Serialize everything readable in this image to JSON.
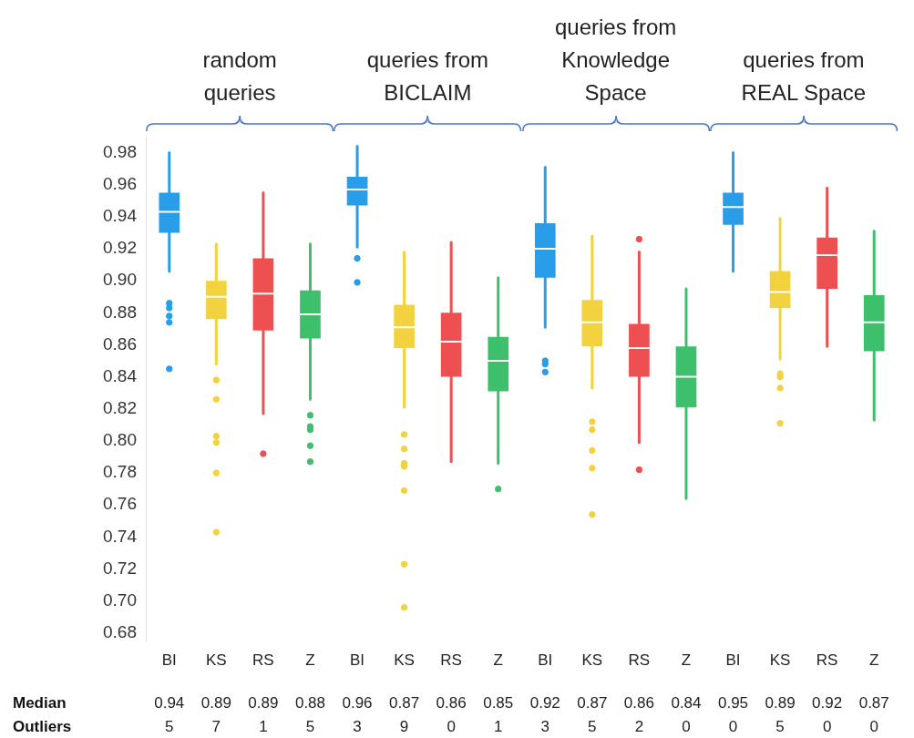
{
  "chart_data": {
    "type": "box",
    "categories": [
      "BI",
      "KS",
      "RS",
      "Z",
      "BI",
      "KS",
      "RS",
      "Z",
      "BI",
      "KS",
      "RS",
      "Z",
      "BI",
      "KS",
      "RS",
      "Z"
    ],
    "colors": [
      "#2a9de8",
      "#f2d23f",
      "#ee5052",
      "#3dbf6c",
      "#2a9de8",
      "#f2d23f",
      "#ee5052",
      "#3dbf6c",
      "#2a9de8",
      "#f2d23f",
      "#ee5052",
      "#3dbf6c",
      "#2a9de8",
      "#f2d23f",
      "#ee5052",
      "#3dbf6c"
    ],
    "boxes": [
      {
        "low": 0.906,
        "q1": 0.93,
        "median": 0.943,
        "q3": 0.955,
        "high": 0.98,
        "outliers": [
          0.886,
          0.883,
          0.878,
          0.874,
          0.845
        ]
      },
      {
        "low": 0.848,
        "q1": 0.876,
        "median": 0.89,
        "q3": 0.9,
        "high": 0.923,
        "outliers": [
          0.838,
          0.826,
          0.803,
          0.799,
          0.78,
          0.743
        ]
      },
      {
        "low": 0.817,
        "q1": 0.869,
        "median": 0.892,
        "q3": 0.914,
        "high": 0.955,
        "outliers": [
          0.792
        ]
      },
      {
        "low": 0.826,
        "q1": 0.864,
        "median": 0.879,
        "q3": 0.894,
        "high": 0.923,
        "outliers": [
          0.816,
          0.809,
          0.807,
          0.797,
          0.787
        ]
      },
      {
        "low": 0.921,
        "q1": 0.947,
        "median": 0.957,
        "q3": 0.965,
        "high": 0.984,
        "outliers": [
          0.914,
          0.899
        ]
      },
      {
        "low": 0.821,
        "q1": 0.858,
        "median": 0.871,
        "q3": 0.885,
        "high": 0.918,
        "outliers": [
          0.804,
          0.795,
          0.786,
          0.784,
          0.769,
          0.723,
          0.696
        ]
      },
      {
        "low": 0.787,
        "q1": 0.84,
        "median": 0.862,
        "q3": 0.88,
        "high": 0.924
      },
      {
        "low": 0.786,
        "q1": 0.831,
        "median": 0.85,
        "q3": 0.865,
        "high": 0.902,
        "outliers": [
          0.77
        ]
      },
      {
        "low": 0.871,
        "q1": 0.902,
        "median": 0.92,
        "q3": 0.936,
        "high": 0.971,
        "outliers": [
          0.85,
          0.848,
          0.843
        ]
      },
      {
        "low": 0.833,
        "q1": 0.859,
        "median": 0.874,
        "q3": 0.888,
        "high": 0.928,
        "outliers": [
          0.812,
          0.807,
          0.794,
          0.783,
          0.754
        ]
      },
      {
        "low": 0.799,
        "q1": 0.84,
        "median": 0.858,
        "q3": 0.873,
        "high": 0.918,
        "outliers": [
          0.926,
          0.782
        ]
      },
      {
        "low": 0.764,
        "q1": 0.821,
        "median": 0.84,
        "q3": 0.859,
        "high": 0.895
      },
      {
        "low": 0.906,
        "q1": 0.935,
        "median": 0.946,
        "q3": 0.955,
        "high": 0.98
      },
      {
        "low": 0.851,
        "q1": 0.883,
        "median": 0.893,
        "q3": 0.906,
        "high": 0.939,
        "outliers": [
          0.842,
          0.84,
          0.833,
          0.811
        ]
      },
      {
        "low": 0.859,
        "q1": 0.895,
        "median": 0.916,
        "q3": 0.927,
        "high": 0.958
      },
      {
        "low": 0.813,
        "q1": 0.856,
        "median": 0.874,
        "q3": 0.891,
        "high": 0.931
      }
    ],
    "ylim": [
      0.675,
      0.99
    ],
    "yticks": [
      {
        "value": 0.68,
        "label": "0.68"
      },
      {
        "value": 0.7,
        "label": "0.70"
      },
      {
        "value": 0.72,
        "label": "0.72"
      },
      {
        "value": 0.74,
        "label": "0.74"
      },
      {
        "value": 0.76,
        "label": "0.76"
      },
      {
        "value": 0.78,
        "label": "0.78"
      },
      {
        "value": 0.8,
        "label": "0.80"
      },
      {
        "value": 0.82,
        "label": "0.82"
      },
      {
        "value": 0.84,
        "label": "0.84"
      },
      {
        "value": 0.86,
        "label": "0.86"
      },
      {
        "value": 0.88,
        "label": "0.88"
      },
      {
        "value": 0.9,
        "label": "0.90"
      },
      {
        "value": 0.92,
        "label": "0.92"
      },
      {
        "value": 0.94,
        "label": "0.94"
      },
      {
        "value": 0.96,
        "label": "0.96"
      },
      {
        "value": 0.98,
        "label": "0.98"
      }
    ],
    "annotations": [
      "random queries",
      "queries from BICLAIM",
      "queries from Knowledge Space",
      "queries from REAL Space",
      "Median",
      "0.94",
      "0.89",
      "0.89",
      "0.88",
      "0.96",
      "0.87",
      "0.86",
      "0.85",
      "0.92",
      "0.87",
      "0.86",
      "0.84",
      "0.95",
      "0.89",
      "0.92",
      "0.87",
      "Outliers",
      "5",
      "7",
      "1",
      "5",
      "3",
      "9",
      "0",
      "1",
      "3",
      "5",
      "2",
      "0",
      "0",
      "5",
      "0",
      "0"
    ]
  }
}
